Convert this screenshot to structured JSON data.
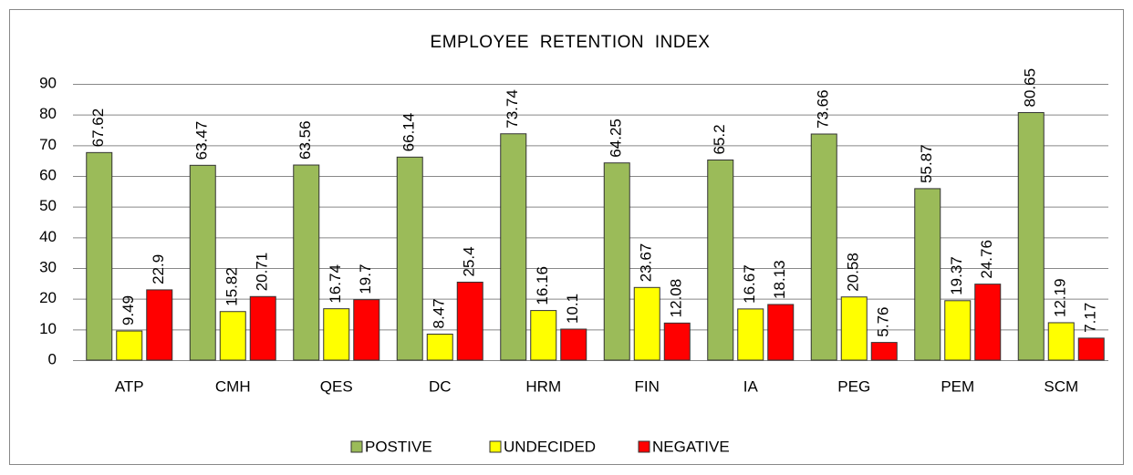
{
  "chart_data": {
    "type": "bar",
    "title": "EMPLOYEE RETENTION INDEX",
    "categories": [
      "ATP",
      "CMH",
      "QES",
      "DC",
      "HRM",
      "FIN",
      "IA",
      "PEG",
      "PEM",
      "SCM"
    ],
    "series": [
      {
        "name": "POSTIVE",
        "color": "#9bbb59",
        "values": [
          67.62,
          63.47,
          63.56,
          66.14,
          73.74,
          64.25,
          65.2,
          73.66,
          55.87,
          80.65
        ]
      },
      {
        "name": "UNDECIDED",
        "color": "#ffff00",
        "values": [
          9.49,
          15.82,
          16.74,
          8.47,
          16.16,
          23.67,
          16.67,
          20.58,
          19.37,
          12.19
        ]
      },
      {
        "name": "NEGATIVE",
        "color": "#ff0000",
        "values": [
          22.9,
          20.71,
          19.7,
          25.4,
          10.1,
          12.08,
          18.13,
          5.76,
          24.76,
          7.17
        ]
      }
    ],
    "ylim": [
      0,
      90
    ],
    "yticks": [
      0,
      10,
      20,
      30,
      40,
      50,
      60,
      70,
      80,
      90
    ],
    "grid": true,
    "legend": "bottom"
  }
}
